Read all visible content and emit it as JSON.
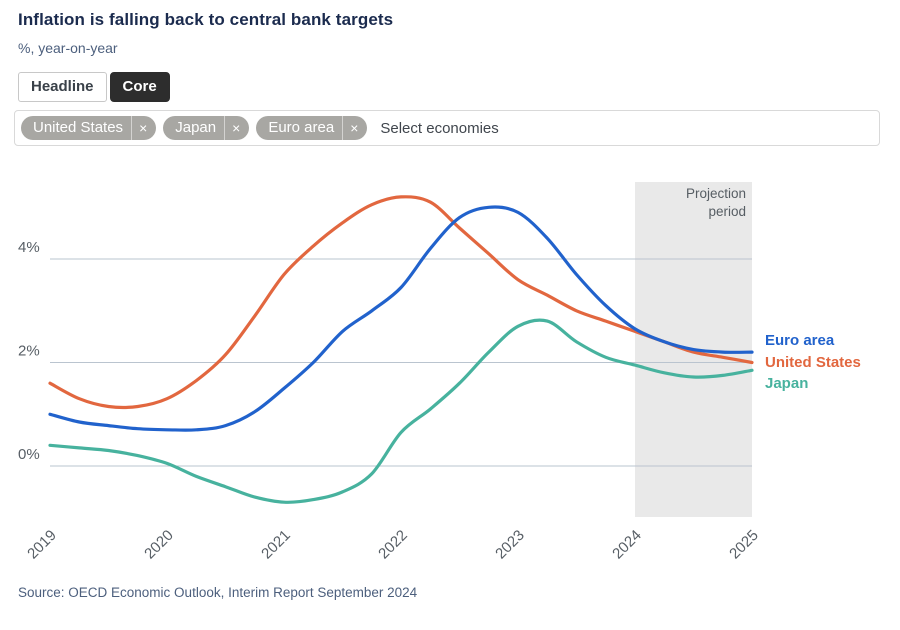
{
  "header": {
    "title": "Inflation is falling back to central bank targets",
    "subtitle": "%, year-on-year"
  },
  "toggle": {
    "options": [
      {
        "label": "Headline",
        "selected": false
      },
      {
        "label": "Core",
        "selected": true
      }
    ]
  },
  "economy_select": {
    "selected": [
      "United States",
      "Japan",
      "Euro area"
    ],
    "remove_icon": "×",
    "placeholder": "Select economies"
  },
  "chart_data": {
    "type": "line",
    "title": "Inflation is falling back to central bank targets",
    "ylabel": "%, year-on-year",
    "x_range": [
      2019,
      2025
    ],
    "ylim": [
      -1.2,
      5.6
    ],
    "grid": "horizontal",
    "legend_position": "right",
    "xticks": [
      "2019",
      "2020",
      "2021",
      "2022",
      "2023",
      "2024",
      "2025"
    ],
    "yticks": [
      {
        "label": "0%",
        "value": 0
      },
      {
        "label": "2%",
        "value": 2
      },
      {
        "label": "4%",
        "value": 4
      }
    ],
    "projection": {
      "label_lines": [
        "Projection",
        "period"
      ],
      "from": 2024,
      "to": 2025
    },
    "x_step": 0.25,
    "series": [
      {
        "name": "Euro area",
        "color": "#2162cc",
        "values": [
          1.0,
          0.85,
          0.78,
          0.72,
          0.7,
          0.7,
          0.78,
          1.05,
          1.5,
          2.0,
          2.6,
          3.0,
          3.45,
          4.2,
          4.8,
          5.0,
          4.9,
          4.4,
          3.7,
          3.1,
          2.65,
          2.4,
          2.25,
          2.2,
          2.2
        ]
      },
      {
        "name": "United States",
        "color": "#e2673f",
        "values": [
          1.6,
          1.3,
          1.15,
          1.15,
          1.3,
          1.65,
          2.15,
          2.9,
          3.7,
          4.25,
          4.7,
          5.05,
          5.2,
          5.1,
          4.6,
          4.1,
          3.6,
          3.3,
          3.0,
          2.8,
          2.6,
          2.4,
          2.2,
          2.1,
          2.0
        ]
      },
      {
        "name": "Japan",
        "color": "#47b29e",
        "values": [
          0.4,
          0.35,
          0.3,
          0.2,
          0.05,
          -0.2,
          -0.4,
          -0.6,
          -0.7,
          -0.65,
          -0.5,
          -0.15,
          0.65,
          1.1,
          1.6,
          2.2,
          2.7,
          2.8,
          2.4,
          2.1,
          1.95,
          1.8,
          1.72,
          1.75,
          1.85
        ]
      }
    ],
    "styles": {
      "band_fill": "#e9e9e9",
      "grid_color": "#bac4cf",
      "tick_text_color": "#585f66",
      "projection_text_color": "#565d63"
    }
  },
  "source": {
    "text": "Source: OECD Economic Outlook, Interim Report September 2024"
  }
}
